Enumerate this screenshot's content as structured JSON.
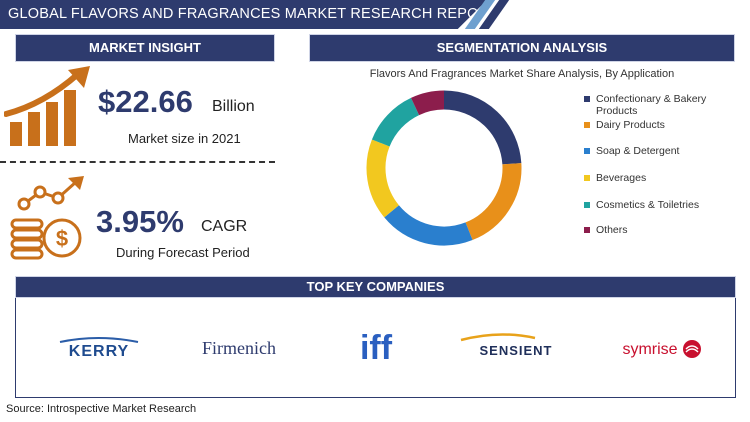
{
  "header": {
    "title": "GLOBAL FLAVORS AND FRAGRANCES  MARKET RESEARCH REPORT"
  },
  "market_insight": {
    "title": "MARKET INSIGHT",
    "market_size_value": "$22.66",
    "market_size_unit": "Billion",
    "market_size_caption": "Market size in 2021",
    "cagr_value": "3.95%",
    "cagr_unit": "CAGR",
    "cagr_caption": "During Forecast Period"
  },
  "segmentation": {
    "title": "SEGMENTATION ANALYSIS"
  },
  "chart_data": {
    "type": "pie",
    "title": "Flavors And Fragrances Market Share Analysis, By Application",
    "categories": [
      "Confectionary & Bakery Products",
      "Dairy Products",
      "Soap & Detergent",
      "Beverages",
      "Cosmetics & Toiletries",
      "Others"
    ],
    "values": [
      24,
      20,
      20,
      17,
      12,
      7
    ],
    "colors": [
      "#2e3b6e",
      "#e8901a",
      "#2a7fce",
      "#f2c81f",
      "#20a3a0",
      "#8c1d4c"
    ],
    "donut": true,
    "legend_position": "right"
  },
  "companies": {
    "title": "TOP KEY COMPANIES",
    "names": [
      "KERRY",
      "Firmenich",
      "iff",
      "SENSIENT",
      "symrise"
    ]
  },
  "source": "Source: Introspective Market Research"
}
